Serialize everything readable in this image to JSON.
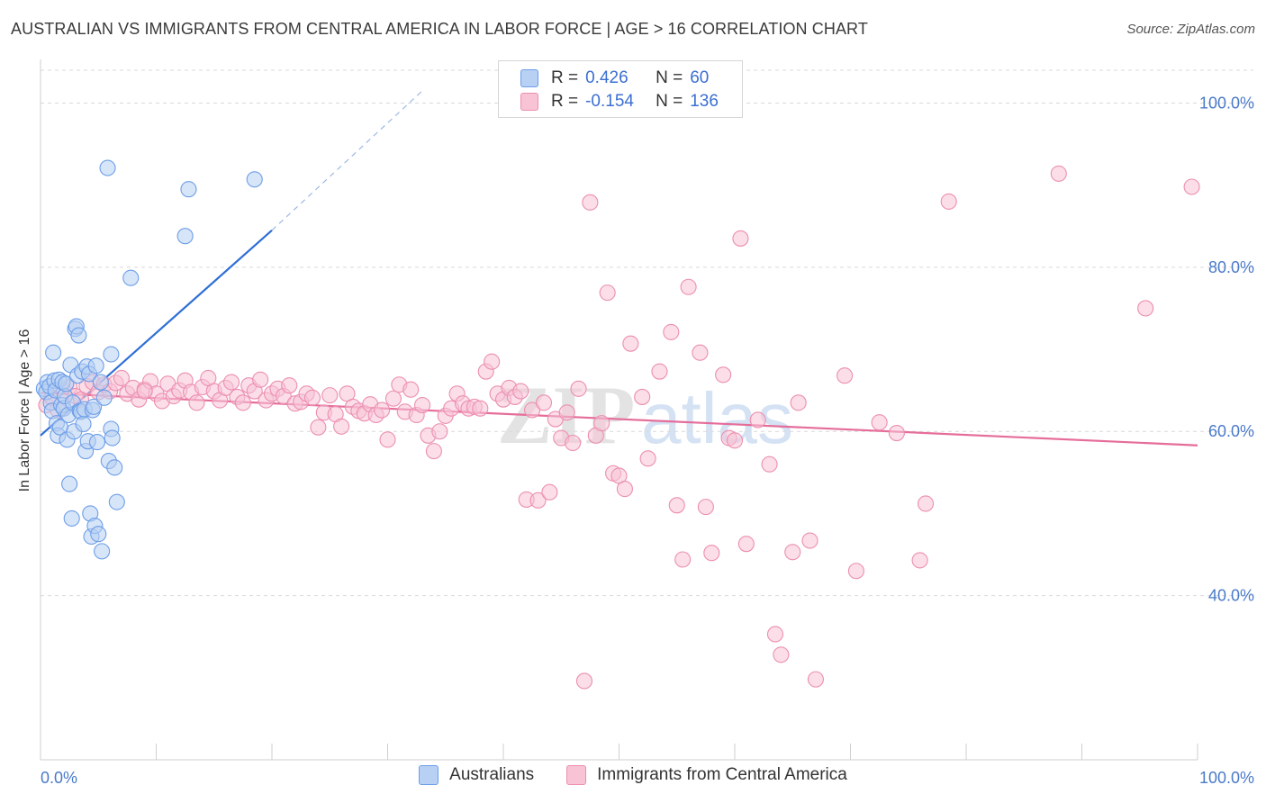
{
  "header": {
    "title": "AUSTRALIAN VS IMMIGRANTS FROM CENTRAL AMERICA IN LABOR FORCE | AGE > 16 CORRELATION CHART",
    "source": "Source: ZipAtlas.com"
  },
  "watermark": {
    "part1": "ZIP",
    "part2": "atlas"
  },
  "legend_top": {
    "rows": [
      {
        "r_label": "R =",
        "r_value": "0.426",
        "n_label": "N =",
        "n_value": "60"
      },
      {
        "r_label": "R =",
        "r_value": "-0.154",
        "n_label": "N =",
        "n_value": "136"
      }
    ]
  },
  "colors": {
    "blue_fill": "#b7d0f3",
    "blue_stroke": "#6d9ee8",
    "blue_line": "#2e6fd6",
    "pink_fill": "#f7c3d5",
    "pink_stroke": "#ec8fb0",
    "pink_line": "#e56d9a",
    "grid": "#d9d9d9",
    "tick_text": "#4a7ac9"
  },
  "chart_data": {
    "type": "scatter",
    "title": "AUSTRALIAN VS IMMIGRANTS FROM CENTRAL AMERICA IN LABOR FORCE | AGE > 16 CORRELATION CHART",
    "xlabel": "",
    "ylabel": "In Labor Force | Age > 16",
    "xlim": [
      0,
      100
    ],
    "ylim": [
      20,
      104
    ],
    "x_tick_labels": [
      "0.0%",
      "100.0%"
    ],
    "y_ticks": [
      40,
      60,
      80,
      100
    ],
    "y_tick_labels": [
      "40.0%",
      "60.0%",
      "80.0%",
      "100.0%"
    ],
    "grid": "horizontal dashed",
    "legend_position": "bottom",
    "series": [
      {
        "name": "Australians",
        "color": "#6d9ee8",
        "trend": {
          "x": [
            0,
            20
          ],
          "y": [
            59.5,
            84.5
          ],
          "dashed_extension_to": [
            33,
            101.5
          ]
        },
        "points": [
          [
            0.3,
            65.2
          ],
          [
            0.5,
            64.8
          ],
          [
            0.6,
            66.0
          ],
          [
            0.8,
            65.5
          ],
          [
            0.9,
            63.5
          ],
          [
            1.0,
            62.5
          ],
          [
            1.1,
            69.6
          ],
          [
            1.2,
            66.2
          ],
          [
            1.3,
            65.0
          ],
          [
            1.4,
            61.0
          ],
          [
            1.5,
            59.5
          ],
          [
            1.6,
            66.3
          ],
          [
            1.7,
            60.5
          ],
          [
            1.8,
            63.2
          ],
          [
            1.9,
            66.0
          ],
          [
            2.0,
            62.8
          ],
          [
            2.1,
            64.3
          ],
          [
            2.2,
            65.8
          ],
          [
            2.3,
            59.0
          ],
          [
            2.4,
            62.0
          ],
          [
            2.5,
            53.6
          ],
          [
            2.6,
            68.1
          ],
          [
            2.7,
            49.4
          ],
          [
            2.8,
            63.5
          ],
          [
            2.9,
            60.0
          ],
          [
            3.0,
            72.5
          ],
          [
            3.1,
            72.8
          ],
          [
            3.2,
            66.8
          ],
          [
            3.3,
            71.7
          ],
          [
            3.4,
            62.5
          ],
          [
            3.5,
            62.4
          ],
          [
            3.6,
            67.3
          ],
          [
            3.7,
            60.9
          ],
          [
            3.8,
            62.7
          ],
          [
            3.9,
            57.6
          ],
          [
            4.0,
            67.9
          ],
          [
            4.1,
            58.8
          ],
          [
            4.2,
            67.0
          ],
          [
            4.3,
            50.0
          ],
          [
            4.4,
            47.2
          ],
          [
            4.5,
            62.6
          ],
          [
            4.6,
            63.0
          ],
          [
            4.7,
            48.5
          ],
          [
            4.8,
            68.0
          ],
          [
            4.9,
            58.7
          ],
          [
            5.0,
            47.5
          ],
          [
            5.2,
            66.0
          ],
          [
            5.3,
            45.4
          ],
          [
            5.5,
            64.1
          ],
          [
            5.8,
            92.1
          ],
          [
            5.9,
            56.4
          ],
          [
            6.1,
            60.3
          ],
          [
            6.2,
            59.2
          ],
          [
            6.4,
            55.6
          ],
          [
            6.6,
            51.4
          ],
          [
            6.1,
            69.4
          ],
          [
            7.8,
            78.7
          ],
          [
            12.5,
            83.8
          ],
          [
            12.8,
            89.5
          ],
          [
            18.5,
            90.7
          ]
        ]
      },
      {
        "name": "Immigrants from Central America",
        "color": "#ec8fb0",
        "trend": {
          "x": [
            0,
            100
          ],
          "y": [
            64.7,
            58.3
          ]
        },
        "points": [
          [
            0.5,
            63.2
          ],
          [
            1.0,
            64.1
          ],
          [
            1.5,
            62.6
          ],
          [
            2.0,
            65.0
          ],
          [
            2.5,
            65.4
          ],
          [
            3.0,
            64.3
          ],
          [
            3.5,
            63.9
          ],
          [
            4.0,
            65.5
          ],
          [
            4.5,
            66.0
          ],
          [
            5.0,
            64.8
          ],
          [
            5.5,
            65.7
          ],
          [
            6.0,
            64.9
          ],
          [
            6.5,
            65.9
          ],
          [
            7.0,
            66.5
          ],
          [
            7.5,
            64.6
          ],
          [
            8.0,
            65.3
          ],
          [
            8.5,
            63.9
          ],
          [
            9.0,
            65.1
          ],
          [
            9.5,
            66.1
          ],
          [
            10.0,
            64.6
          ],
          [
            10.5,
            63.7
          ],
          [
            11.0,
            65.8
          ],
          [
            11.5,
            64.3
          ],
          [
            12.0,
            65.0
          ],
          [
            12.5,
            66.2
          ],
          [
            13.0,
            64.8
          ],
          [
            13.5,
            63.5
          ],
          [
            14.0,
            65.4
          ],
          [
            14.5,
            66.5
          ],
          [
            15.0,
            64.9
          ],
          [
            15.5,
            63.8
          ],
          [
            16.0,
            65.3
          ],
          [
            16.5,
            66.0
          ],
          [
            17.0,
            64.2
          ],
          [
            17.5,
            63.5
          ],
          [
            18.0,
            65.6
          ],
          [
            18.5,
            64.9
          ],
          [
            19.0,
            66.3
          ],
          [
            19.5,
            63.8
          ],
          [
            20.0,
            64.6
          ],
          [
            20.5,
            65.2
          ],
          [
            21.0,
            64.3
          ],
          [
            21.5,
            65.6
          ],
          [
            22.0,
            63.4
          ],
          [
            22.5,
            63.6
          ],
          [
            23.0,
            64.6
          ],
          [
            23.5,
            64.1
          ],
          [
            24.0,
            60.5
          ],
          [
            24.5,
            62.3
          ],
          [
            25.0,
            64.4
          ],
          [
            25.5,
            62.1
          ],
          [
            26.0,
            60.6
          ],
          [
            26.5,
            64.6
          ],
          [
            27.0,
            63.0
          ],
          [
            27.5,
            62.5
          ],
          [
            28.0,
            62.2
          ],
          [
            28.5,
            63.3
          ],
          [
            29.0,
            62.0
          ],
          [
            29.5,
            62.6
          ],
          [
            30.0,
            59.0
          ],
          [
            30.5,
            64.0
          ],
          [
            31.0,
            65.7
          ],
          [
            31.5,
            62.4
          ],
          [
            32.0,
            65.1
          ],
          [
            32.5,
            62.0
          ],
          [
            33.0,
            63.2
          ],
          [
            33.5,
            59.5
          ],
          [
            34.0,
            57.6
          ],
          [
            34.5,
            60.0
          ],
          [
            35.0,
            61.9
          ],
          [
            35.5,
            62.8
          ],
          [
            36.0,
            64.6
          ],
          [
            36.5,
            63.4
          ],
          [
            37.0,
            62.8
          ],
          [
            37.5,
            63.0
          ],
          [
            38.0,
            62.8
          ],
          [
            38.5,
            67.3
          ],
          [
            39.0,
            68.5
          ],
          [
            39.5,
            64.6
          ],
          [
            40.0,
            63.9
          ],
          [
            40.5,
            65.3
          ],
          [
            41.0,
            64.2
          ],
          [
            41.5,
            64.9
          ],
          [
            42.0,
            51.7
          ],
          [
            42.5,
            62.6
          ],
          [
            43.0,
            51.6
          ],
          [
            43.5,
            63.5
          ],
          [
            44.0,
            52.6
          ],
          [
            44.5,
            61.5
          ],
          [
            45.0,
            59.2
          ],
          [
            45.5,
            62.3
          ],
          [
            46.0,
            58.6
          ],
          [
            46.5,
            65.2
          ],
          [
            47.0,
            29.6
          ],
          [
            47.5,
            87.9
          ],
          [
            48.0,
            59.5
          ],
          [
            48.5,
            61.0
          ],
          [
            49.0,
            76.9
          ],
          [
            49.5,
            54.9
          ],
          [
            50.0,
            54.6
          ],
          [
            50.5,
            53.0
          ],
          [
            51.0,
            70.7
          ],
          [
            52.0,
            64.2
          ],
          [
            52.5,
            56.7
          ],
          [
            53.5,
            67.3
          ],
          [
            54.5,
            72.1
          ],
          [
            55.0,
            51.0
          ],
          [
            55.5,
            44.4
          ],
          [
            56.0,
            77.6
          ],
          [
            57.0,
            69.6
          ],
          [
            57.5,
            50.8
          ],
          [
            58.0,
            45.2
          ],
          [
            59.0,
            66.9
          ],
          [
            59.5,
            59.2
          ],
          [
            60.0,
            58.9
          ],
          [
            60.5,
            83.5
          ],
          [
            61.0,
            46.3
          ],
          [
            62.0,
            61.4
          ],
          [
            63.0,
            56.0
          ],
          [
            63.5,
            35.3
          ],
          [
            64.0,
            32.8
          ],
          [
            65.0,
            45.3
          ],
          [
            65.5,
            63.5
          ],
          [
            66.5,
            46.7
          ],
          [
            67.0,
            29.8
          ],
          [
            69.5,
            66.8
          ],
          [
            70.5,
            43.0
          ],
          [
            72.5,
            61.1
          ],
          [
            74.0,
            59.8
          ],
          [
            76.0,
            44.3
          ],
          [
            76.5,
            51.2
          ],
          [
            78.5,
            88.0
          ],
          [
            88.0,
            91.4
          ],
          [
            95.5,
            75.0
          ],
          [
            99.5,
            89.8
          ],
          [
            9.0,
            64.9
          ]
        ]
      }
    ]
  },
  "bottom_legend": {
    "items": [
      "Australians",
      "Immigrants from Central America"
    ]
  }
}
